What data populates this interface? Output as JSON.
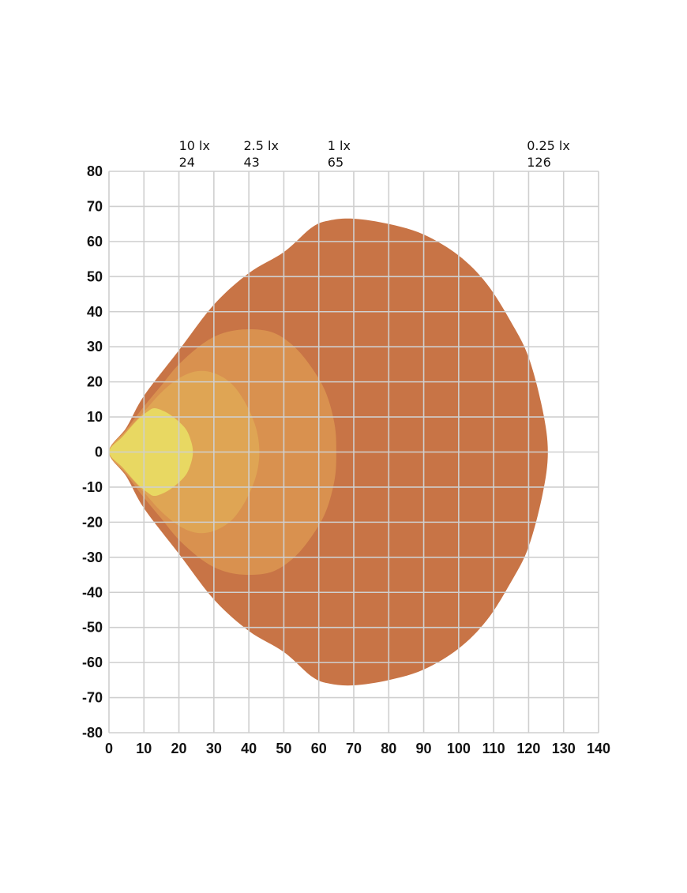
{
  "chart_data": {
    "type": "area",
    "title": "",
    "xlabel": "",
    "ylabel": "",
    "xlim": [
      0,
      140
    ],
    "ylim": [
      -80,
      80
    ],
    "x_ticks": [
      0,
      10,
      20,
      30,
      40,
      50,
      60,
      70,
      80,
      90,
      100,
      110,
      120,
      130,
      140
    ],
    "y_ticks": [
      80,
      70,
      60,
      50,
      40,
      30,
      20,
      10,
      0,
      -10,
      -20,
      -30,
      -40,
      -50,
      -60,
      -70,
      -80
    ],
    "grid": true,
    "legend": "none",
    "isolux_labels": [
      {
        "lux": "10 lx",
        "distance": "24",
        "x": 20
      },
      {
        "lux": "2.5 lx",
        "distance": "43",
        "x": 38.5
      },
      {
        "lux": "1 lx",
        "distance": "65",
        "x": 62.5
      },
      {
        "lux": "0.25 lx",
        "distance": "126",
        "x": 119.5
      }
    ],
    "series": [
      {
        "lux": "0.25 lx",
        "color": "#c87446",
        "points": [
          [
            0,
            0
          ],
          [
            5,
            7
          ],
          [
            10,
            16
          ],
          [
            20,
            29
          ],
          [
            30,
            42
          ],
          [
            40,
            51
          ],
          [
            50,
            57
          ],
          [
            58,
            64
          ],
          [
            63,
            66
          ],
          [
            70,
            66.5
          ],
          [
            80,
            65
          ],
          [
            90,
            62
          ],
          [
            100,
            56
          ],
          [
            108,
            48
          ],
          [
            115,
            37
          ],
          [
            120,
            27
          ],
          [
            124,
            12
          ],
          [
            125.5,
            0
          ],
          [
            124,
            -12
          ],
          [
            120,
            -27
          ],
          [
            115,
            -37
          ],
          [
            108,
            -48
          ],
          [
            100,
            -56
          ],
          [
            90,
            -62
          ],
          [
            80,
            -65
          ],
          [
            70,
            -66.5
          ],
          [
            63,
            -66
          ],
          [
            58,
            -64
          ],
          [
            50,
            -57
          ],
          [
            40,
            -51
          ],
          [
            30,
            -42
          ],
          [
            20,
            -29
          ],
          [
            10,
            -16
          ],
          [
            5,
            -7
          ]
        ]
      },
      {
        "lux": "1 lx",
        "color": "#d9914f",
        "points": [
          [
            0,
            0
          ],
          [
            5,
            6.5
          ],
          [
            10,
            13
          ],
          [
            15,
            19
          ],
          [
            20,
            25
          ],
          [
            27,
            31
          ],
          [
            33,
            34
          ],
          [
            40,
            35
          ],
          [
            47,
            34
          ],
          [
            53,
            30
          ],
          [
            58,
            24
          ],
          [
            62,
            17
          ],
          [
            64.5,
            8
          ],
          [
            65,
            0
          ],
          [
            64.5,
            -8
          ],
          [
            62,
            -17
          ],
          [
            58,
            -24
          ],
          [
            53,
            -30
          ],
          [
            47,
            -34
          ],
          [
            40,
            -35
          ],
          [
            33,
            -34
          ],
          [
            27,
            -31
          ],
          [
            20,
            -25
          ],
          [
            15,
            -19
          ],
          [
            10,
            -13
          ],
          [
            5,
            -6.5
          ]
        ]
      },
      {
        "lux": "2.5 lx",
        "color": "#dfa554",
        "points": [
          [
            0,
            0
          ],
          [
            5,
            6
          ],
          [
            10,
            11.5
          ],
          [
            15,
            17
          ],
          [
            20,
            21
          ],
          [
            25,
            23
          ],
          [
            30,
            22.5
          ],
          [
            35,
            19.5
          ],
          [
            39,
            14
          ],
          [
            42,
            7
          ],
          [
            43,
            0
          ],
          [
            42,
            -7
          ],
          [
            39,
            -14
          ],
          [
            35,
            -19.5
          ],
          [
            30,
            -22.5
          ],
          [
            25,
            -23
          ],
          [
            20,
            -21
          ],
          [
            15,
            -17
          ],
          [
            10,
            -11.5
          ],
          [
            5,
            -6
          ]
        ]
      },
      {
        "lux": "10 lx",
        "color": "#e8d862",
        "points": [
          [
            0,
            0
          ],
          [
            4,
            4.5
          ],
          [
            8,
            9
          ],
          [
            11,
            11.5
          ],
          [
            13,
            12.5
          ],
          [
            16,
            11.5
          ],
          [
            19,
            9.5
          ],
          [
            22,
            6.5
          ],
          [
            23.5,
            3
          ],
          [
            24,
            0
          ],
          [
            23.5,
            -3
          ],
          [
            22,
            -6.5
          ],
          [
            19,
            -9.5
          ],
          [
            16,
            -11.5
          ],
          [
            13,
            -12.5
          ],
          [
            11,
            -11.5
          ],
          [
            8,
            -9
          ],
          [
            4,
            -4.5
          ]
        ]
      }
    ]
  }
}
